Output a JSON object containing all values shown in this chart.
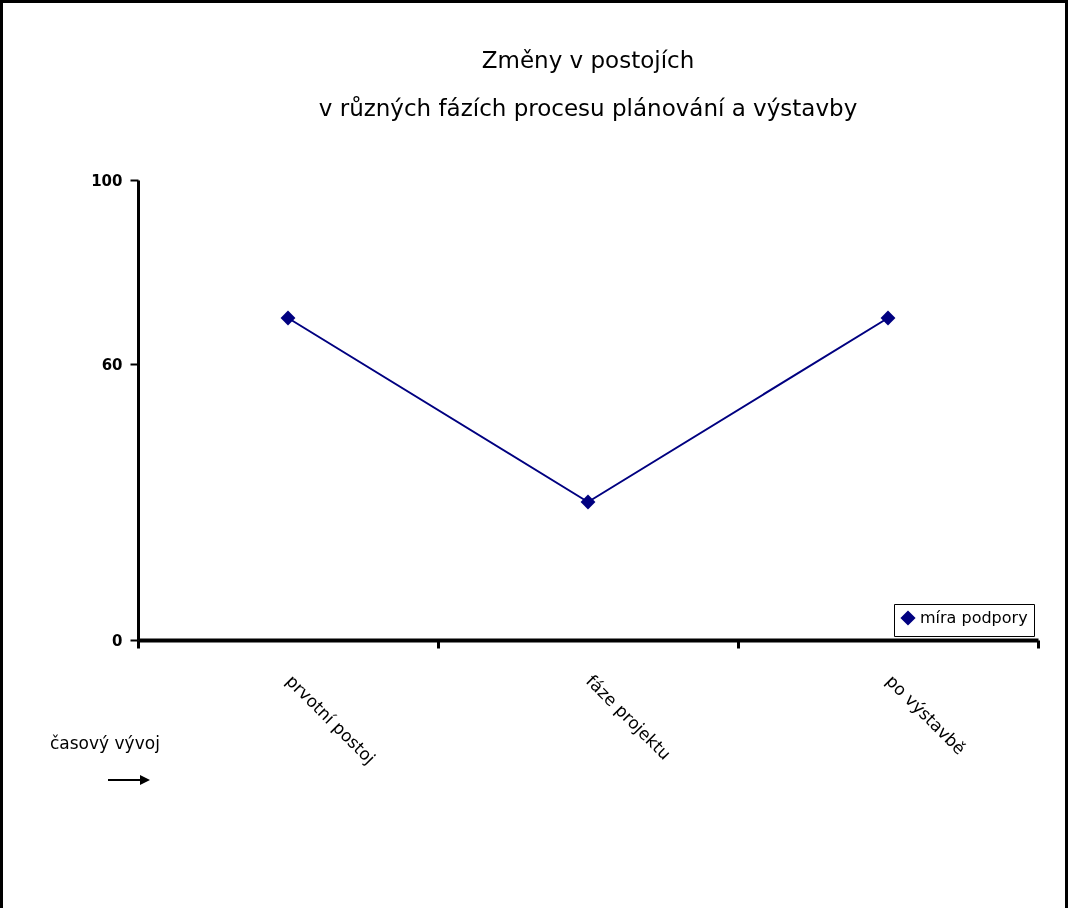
{
  "chart_data": {
    "type": "line",
    "title": [
      "Změny v postojích",
      "v různých fázích procesu plánování a výstavby"
    ],
    "categories": [
      "prvotní postoj",
      "fáze projektu",
      "po výstavbě"
    ],
    "series": [
      {
        "name": "míra podpory",
        "color": "#000080",
        "values": [
          70,
          30,
          70
        ]
      }
    ],
    "ylim": [
      0,
      100
    ],
    "yticks": [
      0,
      60,
      100
    ],
    "annotations": [
      "časový vývoj"
    ],
    "legend": "bottom right",
    "marker": "diamond",
    "line_style": "solid",
    "grid": false
  }
}
